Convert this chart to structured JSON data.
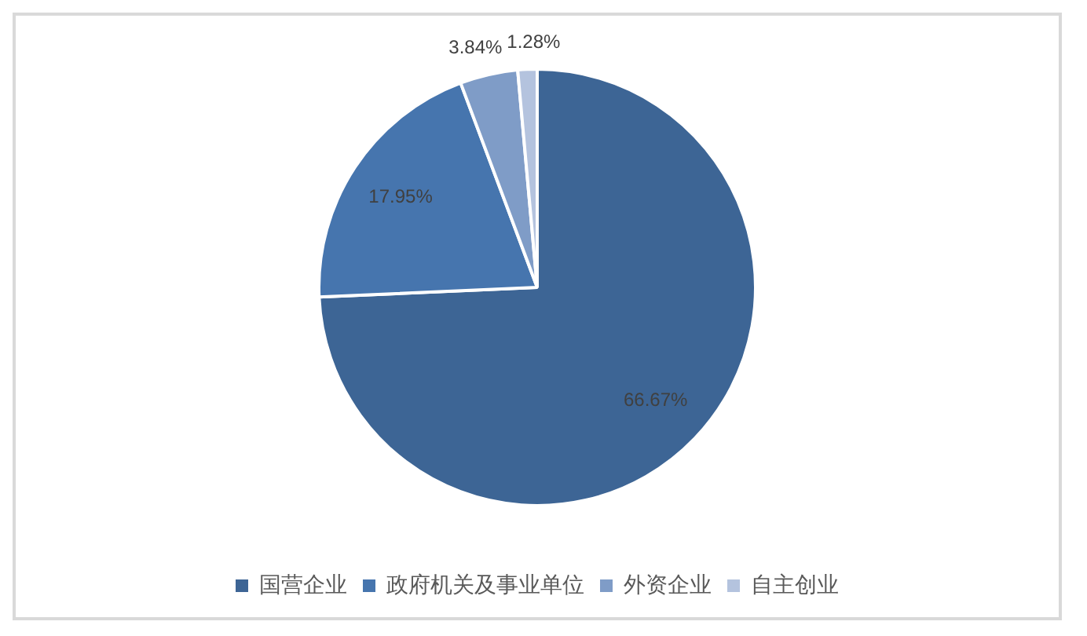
{
  "chart_data": {
    "type": "pie",
    "categories": [
      "国营企业",
      "政府机关及事业单位",
      "外资企业",
      "自主创业"
    ],
    "values": [
      66.67,
      17.95,
      3.84,
      1.28
    ],
    "colors": [
      "#3d6595",
      "#4675ae",
      "#7f9cc7",
      "#b4c3de"
    ],
    "value_labels": [
      "66.67%",
      "17.95%",
      "3.84%",
      "1.28%"
    ],
    "legend": "bottom"
  }
}
